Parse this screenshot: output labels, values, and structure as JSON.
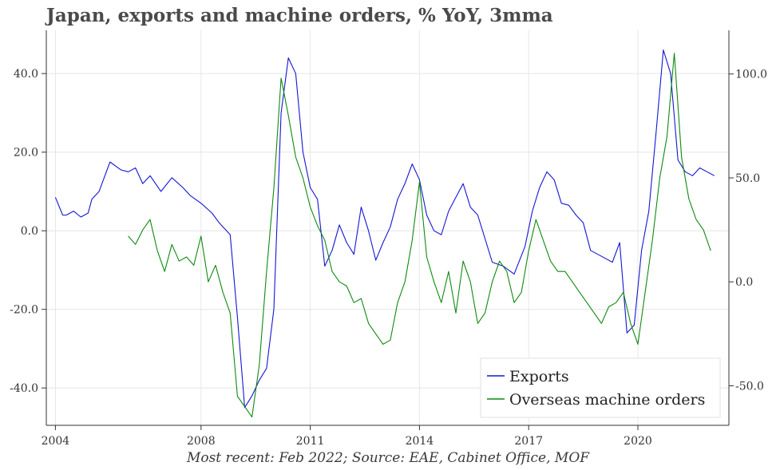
{
  "chart_data": {
    "type": "line",
    "title": "Japan, exports and machine orders, % YoY, 3mma",
    "footer": "Most recent: Feb 2022; Source: EAE, Cabinet Office, MOF",
    "x_ticks": [
      "2004",
      "2008",
      "2011",
      "2014",
      "2017",
      "2020"
    ],
    "x_tick_values": [
      2004,
      2008,
      2011,
      2014,
      2017,
      2020
    ],
    "xlim": [
      2003.75,
      2022.5
    ],
    "y_left": {
      "ticks": [
        "40.0",
        "20.0",
        "0.0",
        "-20.0",
        "-40.0"
      ],
      "tick_values": [
        40,
        20,
        0,
        -20,
        -40
      ],
      "ylim": [
        -49.5,
        51
      ]
    },
    "y_right": {
      "ticks": [
        "100.0",
        "50.0",
        "0.0",
        "-50.0"
      ],
      "tick_values": [
        100,
        50,
        0,
        -50
      ],
      "ylim": [
        -69,
        121
      ]
    },
    "grid": true,
    "legend_position": "bottom-right",
    "series": [
      {
        "name": "Exports",
        "axis": "left",
        "color": "#1515d6",
        "x": [
          2004.0,
          2004.2,
          2004.3,
          2004.5,
          2004.7,
          2004.9,
          2005.0,
          2005.2,
          2005.5,
          2005.8,
          2006.0,
          2006.2,
          2006.4,
          2006.6,
          2006.9,
          2007.2,
          2007.5,
          2007.7,
          2008.0,
          2008.3,
          2008.5,
          2008.8,
          2009.0,
          2009.2,
          2009.4,
          2009.6,
          2009.8,
          2010.0,
          2010.2,
          2010.4,
          2010.6,
          2010.8,
          2011.0,
          2011.2,
          2011.4,
          2011.6,
          2011.8,
          2012.0,
          2012.2,
          2012.4,
          2012.6,
          2012.8,
          2013.0,
          2013.2,
          2013.4,
          2013.6,
          2013.8,
          2014.0,
          2014.2,
          2014.4,
          2014.6,
          2014.8,
          2015.0,
          2015.2,
          2015.4,
          2015.6,
          2015.8,
          2016.0,
          2016.3,
          2016.6,
          2016.9,
          2017.1,
          2017.3,
          2017.5,
          2017.7,
          2017.9,
          2018.1,
          2018.3,
          2018.5,
          2018.7,
          2018.9,
          2019.1,
          2019.3,
          2019.5,
          2019.7,
          2019.9,
          2020.1,
          2020.3,
          2020.5,
          2020.7,
          2020.9,
          2021.1,
          2021.3,
          2021.5,
          2021.7,
          2021.9,
          2022.1
        ],
        "values": [
          8.5,
          4.0,
          4.0,
          5.0,
          3.5,
          4.5,
          8.0,
          10.0,
          17.5,
          15.5,
          15.0,
          16.0,
          12.0,
          14.0,
          10.0,
          13.5,
          11.0,
          9.0,
          7.0,
          4.5,
          2.0,
          -1.0,
          -22.0,
          -45.0,
          -42.0,
          -38.0,
          -35.0,
          -20.0,
          30.0,
          44.0,
          40.0,
          20.0,
          11.0,
          8.0,
          -9.0,
          -5.0,
          1.5,
          -3.0,
          -6.0,
          6.0,
          0.0,
          -7.5,
          -3.0,
          1.0,
          8.0,
          12.0,
          17.0,
          13.0,
          4.0,
          0.0,
          -1.0,
          5.0,
          8.5,
          12.0,
          6.0,
          4.0,
          -2.0,
          -8.0,
          -9.0,
          -11.0,
          -4.0,
          5.0,
          11.0,
          15.0,
          13.0,
          7.0,
          6.5,
          4.0,
          2.0,
          -5.0,
          -6.0,
          -7.0,
          -8.0,
          -3.0,
          -26.0,
          -24.0,
          -5.0,
          5.0,
          25.0,
          46.0,
          40.0,
          18.0,
          15.0,
          14.0,
          16.0,
          15.0,
          14.0
        ]
      },
      {
        "name": "Overseas machine orders",
        "axis": "right",
        "color": "#0f8a0f",
        "x": [
          2006.0,
          2006.2,
          2006.4,
          2006.6,
          2006.8,
          2007.0,
          2007.2,
          2007.4,
          2007.6,
          2007.8,
          2008.0,
          2008.2,
          2008.4,
          2008.6,
          2008.8,
          2009.0,
          2009.2,
          2009.4,
          2009.6,
          2009.8,
          2010.0,
          2010.2,
          2010.4,
          2010.6,
          2010.8,
          2011.0,
          2011.2,
          2011.4,
          2011.6,
          2011.8,
          2012.0,
          2012.2,
          2012.4,
          2012.6,
          2012.8,
          2013.0,
          2013.2,
          2013.4,
          2013.6,
          2013.8,
          2014.0,
          2014.2,
          2014.4,
          2014.6,
          2014.8,
          2015.0,
          2015.2,
          2015.4,
          2015.6,
          2015.8,
          2016.0,
          2016.2,
          2016.4,
          2016.6,
          2016.8,
          2017.0,
          2017.2,
          2017.4,
          2017.6,
          2017.8,
          2018.0,
          2018.2,
          2018.4,
          2018.6,
          2018.8,
          2019.0,
          2019.2,
          2019.4,
          2019.6,
          2019.8,
          2020.0,
          2020.2,
          2020.4,
          2020.6,
          2020.8,
          2021.0,
          2021.2,
          2021.4,
          2021.6,
          2021.8,
          2022.0
        ],
        "values": [
          22.0,
          18.0,
          25.0,
          30.0,
          15.0,
          5.0,
          18.0,
          10.0,
          12.0,
          8.0,
          22.0,
          0.0,
          8.0,
          -5.0,
          -15.0,
          -55.0,
          -60.0,
          -65.0,
          -40.0,
          5.0,
          45.0,
          98.0,
          80.0,
          60.0,
          50.0,
          36.0,
          27.0,
          20.0,
          5.0,
          0.0,
          -2.0,
          -10.0,
          -8.0,
          -20.0,
          -25.0,
          -30.0,
          -28.0,
          -10.0,
          0.0,
          20.0,
          48.0,
          12.0,
          0.0,
          -10.0,
          5.0,
          -15.0,
          10.0,
          0.0,
          -20.0,
          -15.0,
          0.0,
          10.0,
          5.0,
          -10.0,
          -5.0,
          15.0,
          30.0,
          20.0,
          10.0,
          5.0,
          5.0,
          0.0,
          -5.0,
          -10.0,
          -15.0,
          -20.0,
          -12.0,
          -10.0,
          -5.0,
          -20.0,
          -30.0,
          -5.0,
          20.0,
          50.0,
          70.0,
          110.0,
          60.0,
          40.0,
          30.0,
          25.0,
          15.0
        ]
      }
    ]
  }
}
